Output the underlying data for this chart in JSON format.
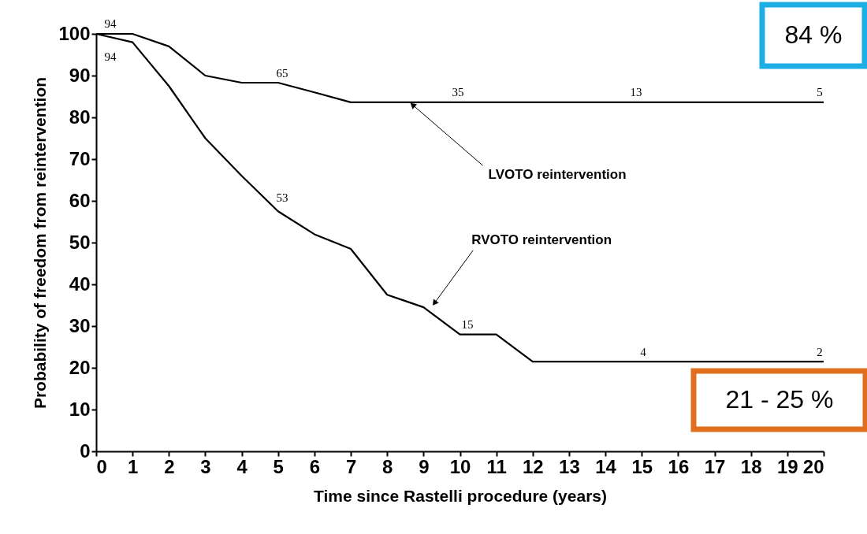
{
  "chart_data": {
    "type": "line",
    "xlabel": "Time since Rastelli procedure (years)",
    "ylabel": "Probability of freedom from reintervention",
    "series": [
      {
        "color": "#000000",
        "x": [
          0,
          1,
          2,
          3,
          4,
          5,
          6,
          7,
          20
        ],
        "values": [
          100,
          100,
          97,
          90,
          88.3,
          88.3,
          86,
          83.6,
          83.6
        ]
      },
      {
        "color": "#000000",
        "x": [
          0,
          1,
          2,
          3,
          4,
          5,
          6,
          7,
          8,
          9,
          10,
          11,
          12,
          20
        ],
        "values": [
          100,
          98,
          87.5,
          75,
          66,
          57.5,
          52,
          48.5,
          37.5,
          34.5,
          28,
          28,
          21.5,
          21.5
        ]
      }
    ],
    "xlim": [
      0,
      20
    ],
    "xticks": [
      0,
      1,
      2,
      3,
      4,
      5,
      6,
      7,
      8,
      9,
      10,
      11,
      12,
      13,
      14,
      15,
      16,
      17,
      18,
      19,
      20
    ],
    "ylim": [
      0,
      100
    ],
    "yticks": [
      0,
      10,
      20,
      30,
      40,
      50,
      60,
      70,
      80,
      90,
      100
    ],
    "grid": false,
    "marker": "none",
    "line_style": "solid",
    "annotations": [
      {
        "text": "LVOTO reintervention",
        "x": 8.7,
        "y": 83
      },
      {
        "text": "RVOTO reintervention",
        "x": 9.3,
        "y": 35.5
      },
      "94",
      "94",
      "65",
      "53",
      "35",
      "13",
      "5",
      "15",
      "4",
      "2",
      "84 %",
      "21 - 25 %"
    ]
  }
}
